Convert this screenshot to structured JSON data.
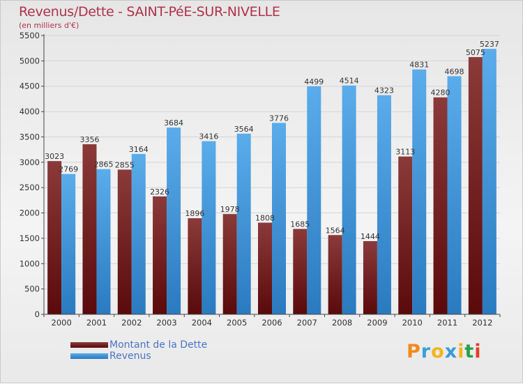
{
  "header": {
    "title": "Revenus/Dette - SAINT-PéE-SUR-NIVELLE",
    "unit": "(en milliers d'€)"
  },
  "legend": {
    "dette": "Montant de la Dette",
    "revenus": "Revenus"
  },
  "logo": {
    "letters": [
      "P",
      "r",
      "o",
      "x",
      "i",
      "t",
      "i"
    ]
  },
  "colors": {
    "dette_top": "#8b3a3a",
    "dette_bottom": "#5a0a0a",
    "revenus_top": "#5aacea",
    "revenus_bottom": "#2a7ac0",
    "title": "#b0324a",
    "legend_text": "#4a73c8"
  },
  "chart_data": {
    "type": "bar",
    "title": "Revenus/Dette - SAINT-PéE-SUR-NIVELLE",
    "ylabel": "(en milliers d'€)",
    "xlabel": "",
    "ylim": [
      0,
      5500
    ],
    "yticks": [
      0,
      500,
      1000,
      1500,
      2000,
      2500,
      3000,
      3500,
      4000,
      4500,
      5000,
      5500
    ],
    "grid": true,
    "legend_position": "bottom-left",
    "categories": [
      "2000",
      "2001",
      "2002",
      "2003",
      "2004",
      "2005",
      "2006",
      "2007",
      "2008",
      "2009",
      "2010",
      "2011",
      "2012"
    ],
    "series": [
      {
        "name": "Montant de la Dette",
        "values": [
          3023,
          3356,
          2855,
          2326,
          1896,
          1978,
          1808,
          1685,
          1564,
          1444,
          3113,
          4280,
          5075
        ]
      },
      {
        "name": "Revenus",
        "values": [
          2769,
          2865,
          3164,
          3684,
          3416,
          3564,
          3776,
          4499,
          4514,
          4323,
          4831,
          4698,
          5237
        ]
      }
    ]
  }
}
